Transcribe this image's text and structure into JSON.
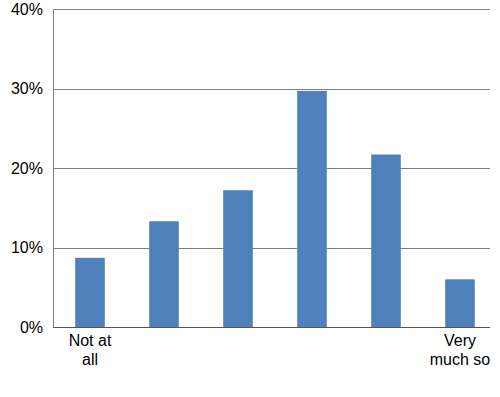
{
  "chart_data": {
    "type": "bar",
    "categories": [
      "Not at all",
      null,
      null,
      null,
      null,
      "Very much so"
    ],
    "values": [
      8.7,
      13.3,
      17.2,
      29.7,
      21.7,
      6.0
    ],
    "color": "#4f81bd",
    "ylim": [
      0,
      40
    ],
    "yticks": [
      {
        "value": 0,
        "label": "0%"
      },
      {
        "value": 10,
        "label": "10%"
      },
      {
        "value": 20,
        "label": "20%"
      },
      {
        "value": 30,
        "label": "30%"
      },
      {
        "value": 40,
        "label": "40%"
      }
    ],
    "grid": true
  }
}
